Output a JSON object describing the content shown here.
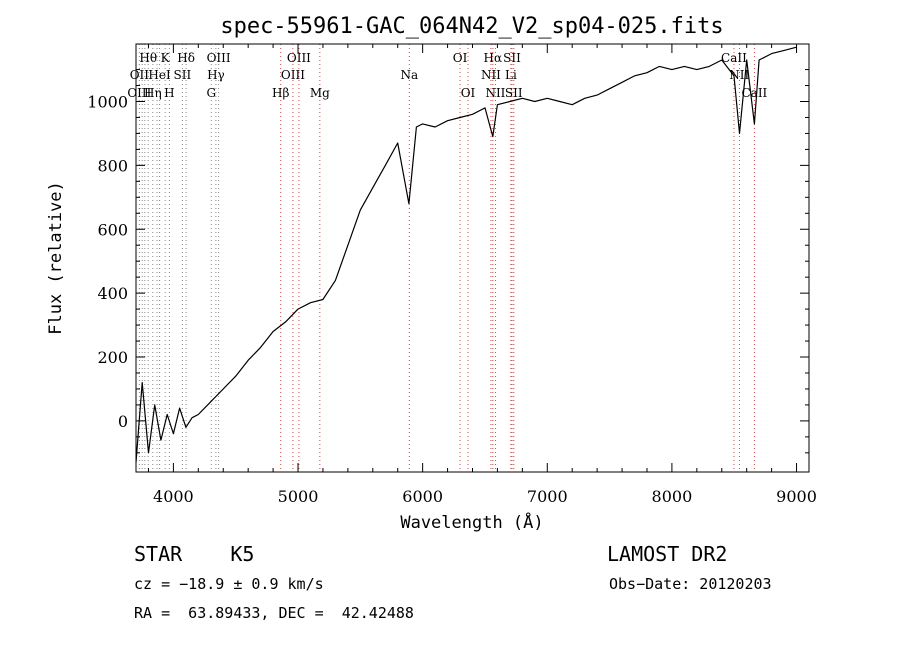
{
  "chart_data": {
    "type": "line",
    "title": "spec-55961-GAC_064N42_V2_sp04-025.fits",
    "xlabel": "Wavelength (Å)",
    "ylabel": "Flux (relative)",
    "xlim": [
      3700,
      9100
    ],
    "ylim": [
      -160,
      1180
    ],
    "x_ticks": [
      4000,
      5000,
      6000,
      7000,
      8000,
      9000
    ],
    "y_ticks": [
      0,
      200,
      400,
      600,
      800,
      1000
    ],
    "grid": false,
    "series": [
      {
        "color": "#000000",
        "x": [
          3700,
          3750,
          3800,
          3850,
          3900,
          3950,
          4000,
          4050,
          4100,
          4150,
          4200,
          4300,
          4400,
          4500,
          4600,
          4700,
          4800,
          4900,
          5000,
          5100,
          5200,
          5300,
          5400,
          5500,
          5600,
          5700,
          5800,
          5890,
          5950,
          6000,
          6100,
          6200,
          6300,
          6400,
          6500,
          6563,
          6600,
          6700,
          6800,
          6900,
          7000,
          7100,
          7200,
          7300,
          7400,
          7500,
          7600,
          7700,
          7800,
          7900,
          8000,
          8100,
          8200,
          8300,
          8400,
          8498,
          8542,
          8600,
          8662,
          8700,
          8800,
          8900,
          9000
        ],
        "y": [
          -130,
          120,
          -100,
          50,
          -60,
          20,
          -40,
          40,
          -20,
          10,
          20,
          60,
          100,
          140,
          190,
          230,
          280,
          310,
          350,
          370,
          380,
          440,
          550,
          660,
          730,
          800,
          870,
          680,
          920,
          930,
          920,
          940,
          950,
          960,
          980,
          890,
          990,
          1000,
          1010,
          1000,
          1010,
          1000,
          990,
          1010,
          1020,
          1040,
          1060,
          1080,
          1090,
          1110,
          1100,
          1110,
          1100,
          1110,
          1130,
          1080,
          900,
          1130,
          930,
          1130,
          1150,
          1160,
          1170
        ]
      }
    ],
    "line_labels": [
      {
        "text": "Hθ",
        "x": 3798,
        "row": 1,
        "color": "#000000"
      },
      {
        "text": "K",
        "x": 3934,
        "row": 1,
        "color": "#000000"
      },
      {
        "text": "Hδ",
        "x": 4102,
        "row": 1,
        "color": "#000000"
      },
      {
        "text": "OIII",
        "x": 4363,
        "row": 1,
        "color": "#000000"
      },
      {
        "text": "OIII",
        "x": 5007,
        "row": 1,
        "color": "#000000"
      },
      {
        "text": "OI",
        "x": 6300,
        "row": 1,
        "color": "#000000"
      },
      {
        "text": "Hα",
        "x": 6563,
        "row": 1,
        "color": "#000000"
      },
      {
        "text": "SII",
        "x": 6717,
        "row": 1,
        "color": "#000000"
      },
      {
        "text": "CaII",
        "x": 8498,
        "row": 1,
        "color": "#000000"
      },
      {
        "text": "OII",
        "x": 3727,
        "row": 2,
        "color": "#000000"
      },
      {
        "text": "HeI",
        "x": 3889,
        "row": 2,
        "color": "#000000"
      },
      {
        "text": "SII",
        "x": 4072,
        "row": 2,
        "color": "#000000"
      },
      {
        "text": "Hγ",
        "x": 4341,
        "row": 2,
        "color": "#000000"
      },
      {
        "text": "OIII",
        "x": 4959,
        "row": 2,
        "color": "#000000"
      },
      {
        "text": "Na",
        "x": 5893,
        "row": 2,
        "color": "#000000"
      },
      {
        "text": "NII",
        "x": 6548,
        "row": 2,
        "color": "#000000"
      },
      {
        "text": "Li",
        "x": 6708,
        "row": 2,
        "color": "#000000"
      },
      {
        "text": "NII",
        "x": 8540,
        "row": 2,
        "color": "#000000"
      },
      {
        "text": "OIII",
        "x": 3727,
        "row": 3,
        "color": "#000000"
      },
      {
        "text": "Hη",
        "x": 3835,
        "row": 3,
        "color": "#000000"
      },
      {
        "text": "H",
        "x": 3968,
        "row": 3,
        "color": "#000000"
      },
      {
        "text": "G",
        "x": 4304,
        "row": 3,
        "color": "#000000"
      },
      {
        "text": "Hβ",
        "x": 4861,
        "row": 3,
        "color": "#000000"
      },
      {
        "text": "Mg",
        "x": 5175,
        "row": 3,
        "color": "#000000"
      },
      {
        "text": "OI",
        "x": 6364,
        "row": 3,
        "color": "#000000"
      },
      {
        "text": "NII",
        "x": 6584,
        "row": 3,
        "color": "#000000"
      },
      {
        "text": "SII",
        "x": 6731,
        "row": 3,
        "color": "#000000"
      },
      {
        "text": "CaII",
        "x": 8662,
        "row": 3,
        "color": "#000000"
      }
    ],
    "line_markers": [
      3727,
      3750,
      3771,
      3798,
      3835,
      3869,
      3889,
      3934,
      3968,
      4072,
      4102,
      4304,
      4341,
      4363,
      4861,
      4959,
      5007,
      5175,
      5893,
      6300,
      6364,
      6548,
      6563,
      6584,
      6708,
      6717,
      6731,
      8498,
      8542,
      8662
    ]
  },
  "info": {
    "object_class": "STAR    K5",
    "survey": "LAMOST DR2",
    "cz": "cz = −18.9 ± 0.9 km/s",
    "obs_date": "Obs−Date: 20120203",
    "ra_dec": "RA =  63.89433, DEC =  42.42488"
  }
}
